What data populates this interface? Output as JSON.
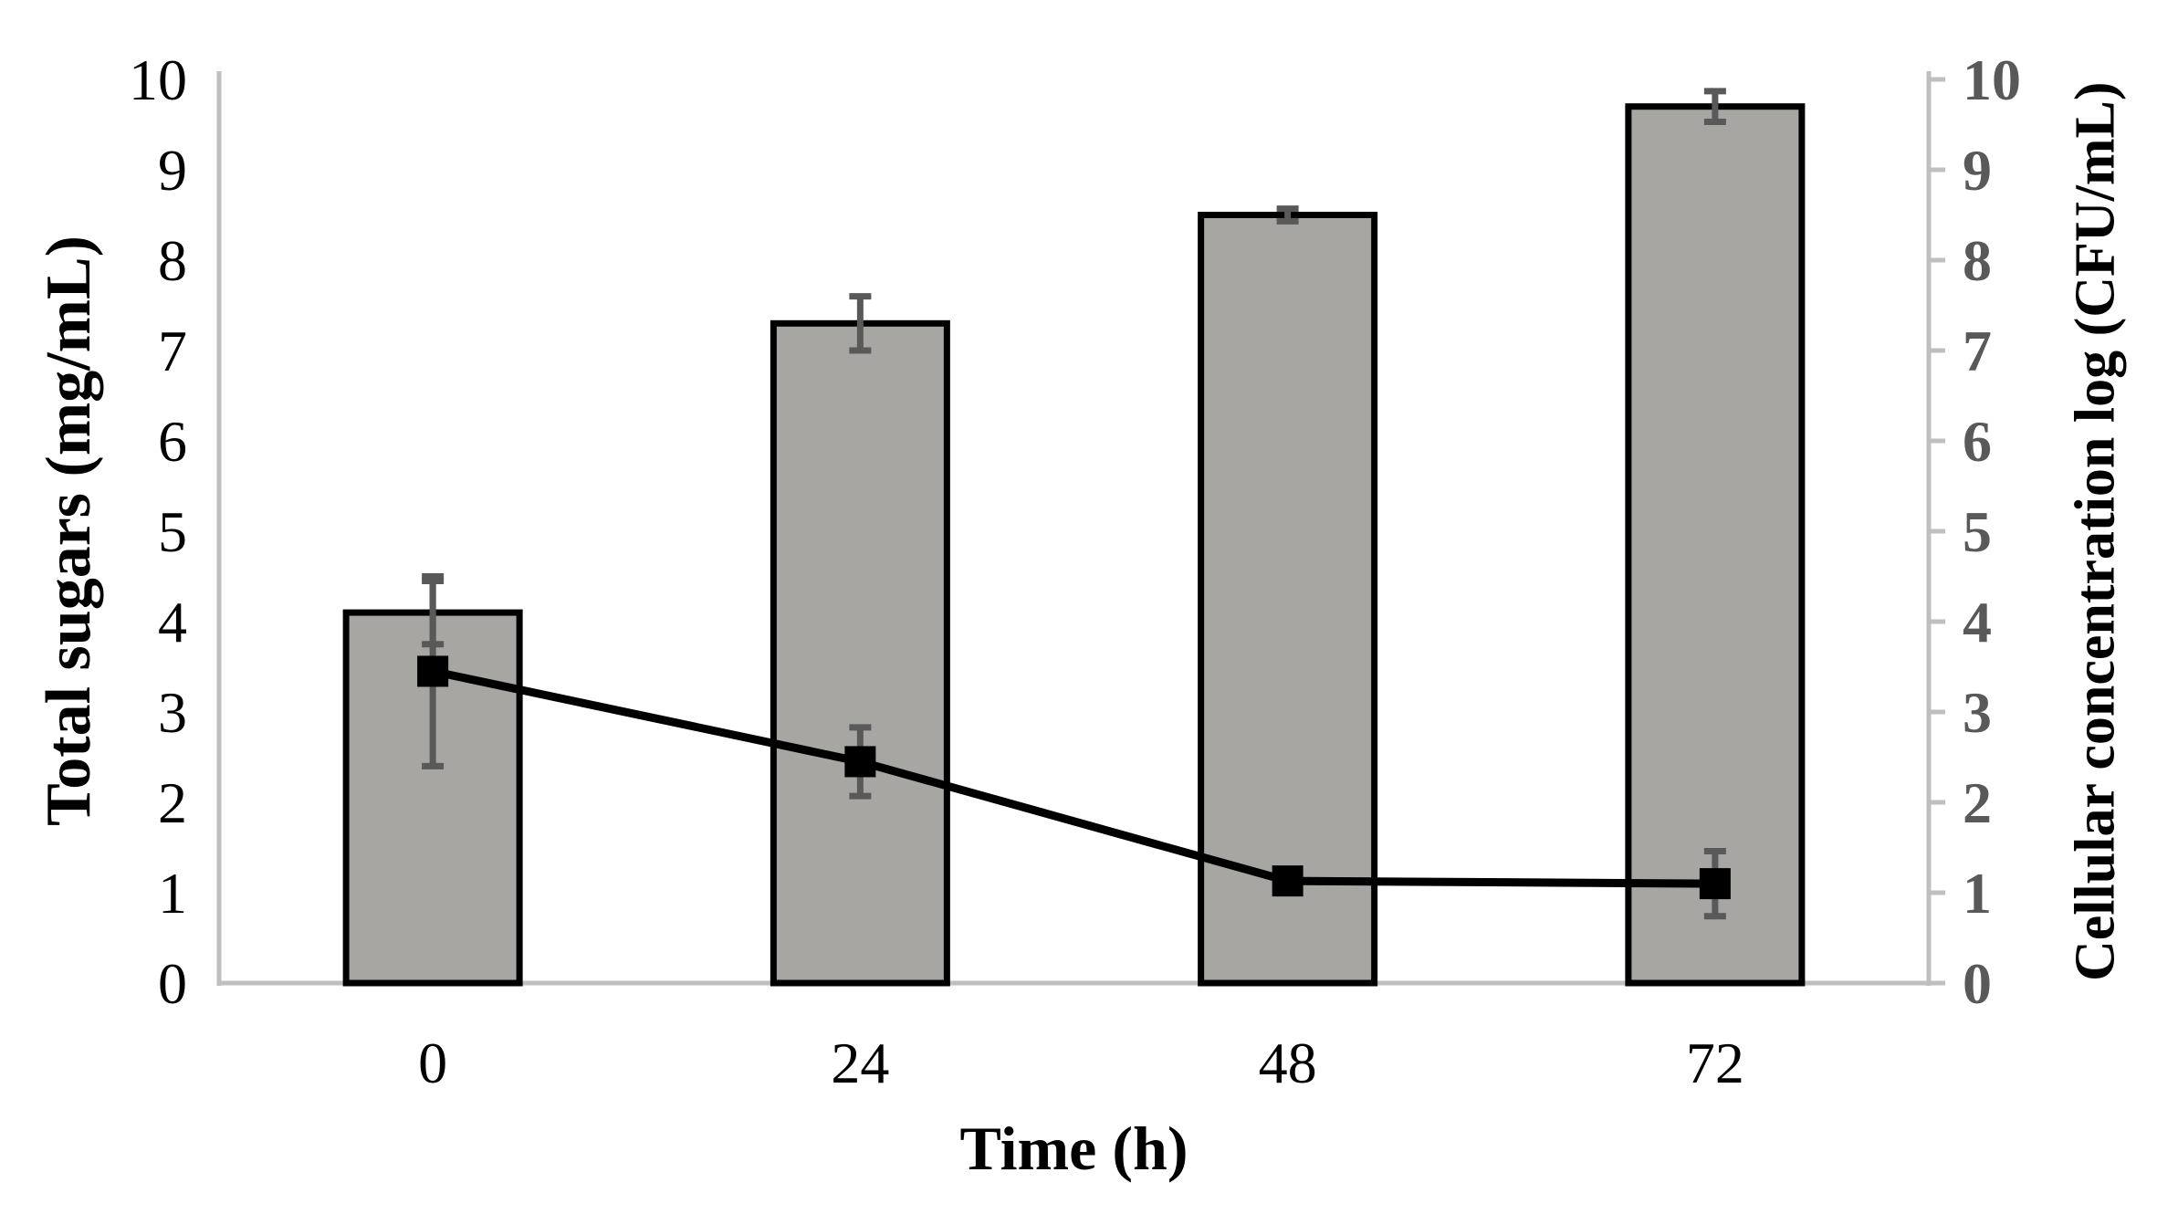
{
  "chart_data": {
    "type": "bar",
    "combo": "bar+line",
    "title": "",
    "categories": [
      "0",
      "24",
      "48",
      "72"
    ],
    "series": [
      {
        "name": "Total sugars (mg/mL)",
        "type": "bar",
        "axis": "left",
        "values": [
          4.1,
          7.3,
          8.5,
          9.7
        ],
        "errors": [
          0.35,
          0.3,
          0.07,
          0.17
        ],
        "fill": "#a8a6a3",
        "stroke": "#000000"
      },
      {
        "name": "Cellular concentration log (CFU/mL)",
        "type": "line",
        "axis": "right",
        "values": [
          3.45,
          2.45,
          1.13,
          1.1
        ],
        "errors": [
          1.05,
          0.38,
          0.05,
          0.36
        ],
        "color": "#000000",
        "marker": "filled-square"
      }
    ],
    "xlabel": "Time (h)",
    "ylabel_left": "Total sugars (mg/mL)",
    "ylabel_right": "Cellular concentration log (CFU/mL)",
    "ylim_left": [
      0,
      10
    ],
    "ylim_right": [
      0,
      10
    ],
    "yticks_left": [
      "0",
      "1",
      "2",
      "3",
      "4",
      "5",
      "6",
      "7",
      "8",
      "9",
      "10"
    ],
    "yticks_right": [
      "0",
      "1",
      "2",
      "3",
      "4",
      "5",
      "6",
      "7",
      "8",
      "9",
      "10"
    ],
    "grid": false,
    "legend_position": "none",
    "colors": {
      "bar_fill": "#a8a6a3",
      "bar_border": "#000000",
      "error_bar": "#595959",
      "axis_line": "#bfbfbf",
      "left_tick_text": "#000000",
      "right_tick_text": "#595959",
      "line_series": "#000000"
    }
  }
}
